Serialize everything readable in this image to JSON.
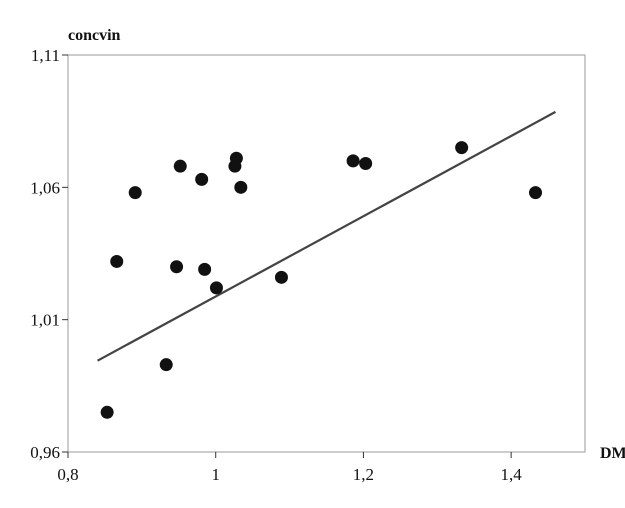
{
  "chart_data": {
    "type": "scatter",
    "title": "",
    "ylabel": "concvin",
    "xlabel": "DM",
    "xlim": [
      0.8,
      1.5
    ],
    "ylim": [
      0.96,
      1.11
    ],
    "x_ticks": [
      0.8,
      1.0,
      1.2,
      1.4
    ],
    "x_tick_labels": [
      "0,8",
      "1",
      "1,2",
      "1,4"
    ],
    "y_ticks": [
      0.96,
      1.01,
      1.06,
      1.11
    ],
    "y_tick_labels": [
      "0,96",
      "1,01",
      "1,06",
      "1,11"
    ],
    "grid": false,
    "legend": "none",
    "point_color": "#111111",
    "line_color": "#444444",
    "points": [
      {
        "x": 0.853,
        "y": 0.975
      },
      {
        "x": 0.866,
        "y": 1.032
      },
      {
        "x": 0.891,
        "y": 1.058
      },
      {
        "x": 0.933,
        "y": 0.993
      },
      {
        "x": 0.947,
        "y": 1.03
      },
      {
        "x": 0.952,
        "y": 1.068
      },
      {
        "x": 0.981,
        "y": 1.063
      },
      {
        "x": 0.985,
        "y": 1.029
      },
      {
        "x": 1.001,
        "y": 1.022
      },
      {
        "x": 1.026,
        "y": 1.068
      },
      {
        "x": 1.028,
        "y": 1.071
      },
      {
        "x": 1.034,
        "y": 1.06
      },
      {
        "x": 1.089,
        "y": 1.026
      },
      {
        "x": 1.186,
        "y": 1.07
      },
      {
        "x": 1.203,
        "y": 1.069
      },
      {
        "x": 1.333,
        "y": 1.075
      },
      {
        "x": 1.433,
        "y": 1.058
      }
    ],
    "trendline": {
      "x": [
        0.84,
        1.46
      ],
      "y": [
        0.9945,
        1.0885
      ]
    }
  }
}
